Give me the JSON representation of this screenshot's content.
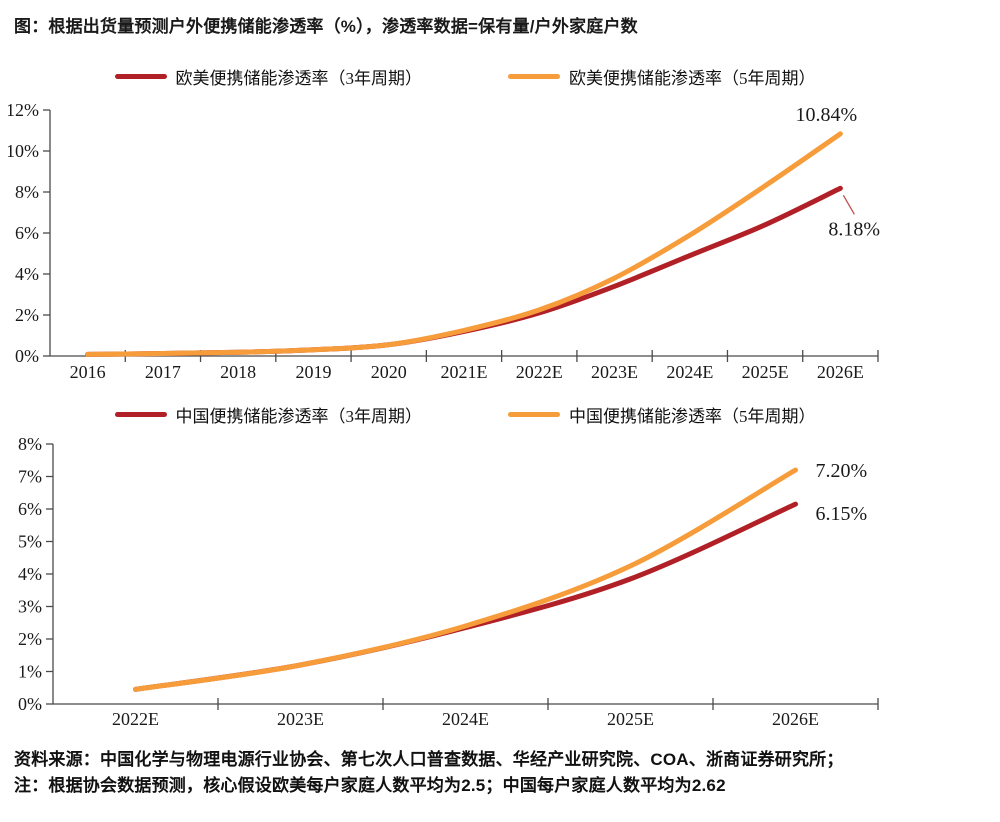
{
  "page": {
    "title": "图：根据出货量预测户外便携储能渗透率（%），渗透率数据=保有量/户外家庭户数",
    "source_line1": "资料来源：中国化学与物理电源行业协会、第七次人口普查数据、华经产业研究院、COA、浙商证券研究所；",
    "source_line2": "注：根据协会数据预测，核心假设欧美每户家庭人数平均为2.5；中国每户家庭人数平均为2.62"
  },
  "colors": {
    "red": "#B02026",
    "orange": "#F79C3A",
    "axis": "#4a4a4a",
    "text": "#1a1a1a",
    "leader": "#C0504D"
  },
  "chart_data": [
    {
      "type": "line",
      "title": "欧美便携储能渗透率",
      "categories": [
        "2016",
        "2017",
        "2018",
        "2019",
        "2020",
        "2021E",
        "2022E",
        "2023E",
        "2024E",
        "2025E",
        "2026E"
      ],
      "ylim": [
        0,
        12
      ],
      "ytick_step": 2,
      "ytick_suffix": "%",
      "grid": false,
      "legend_position": "top-center",
      "series": [
        {
          "name": "欧美便携储能渗透率（3年周期）",
          "color_key": "red",
          "values": [
            0.08,
            0.12,
            0.18,
            0.3,
            0.55,
            1.2,
            2.1,
            3.4,
            4.9,
            6.4,
            8.18
          ],
          "end_label": "8.18%"
        },
        {
          "name": "欧美便携储能渗透率（5年周期）",
          "color_key": "orange",
          "values": [
            0.08,
            0.12,
            0.18,
            0.3,
            0.55,
            1.25,
            2.25,
            3.8,
            5.9,
            8.3,
            10.84
          ],
          "end_label": "10.84%"
        }
      ]
    },
    {
      "type": "line",
      "title": "中国便携储能渗透率",
      "categories": [
        "2022E",
        "2023E",
        "2024E",
        "2025E",
        "2026E"
      ],
      "ylim": [
        0,
        8
      ],
      "ytick_step": 1,
      "ytick_suffix": "%",
      "grid": false,
      "legend_position": "top-center",
      "series": [
        {
          "name": "中国便携储能渗透率（3年周期）",
          "color_key": "red",
          "values": [
            0.45,
            1.2,
            2.35,
            3.85,
            6.15
          ],
          "end_label": "6.15%"
        },
        {
          "name": "中国便携储能渗透率（5年周期）",
          "color_key": "orange",
          "values": [
            0.45,
            1.2,
            2.4,
            4.25,
            7.2
          ],
          "end_label": "7.20%"
        }
      ]
    }
  ]
}
